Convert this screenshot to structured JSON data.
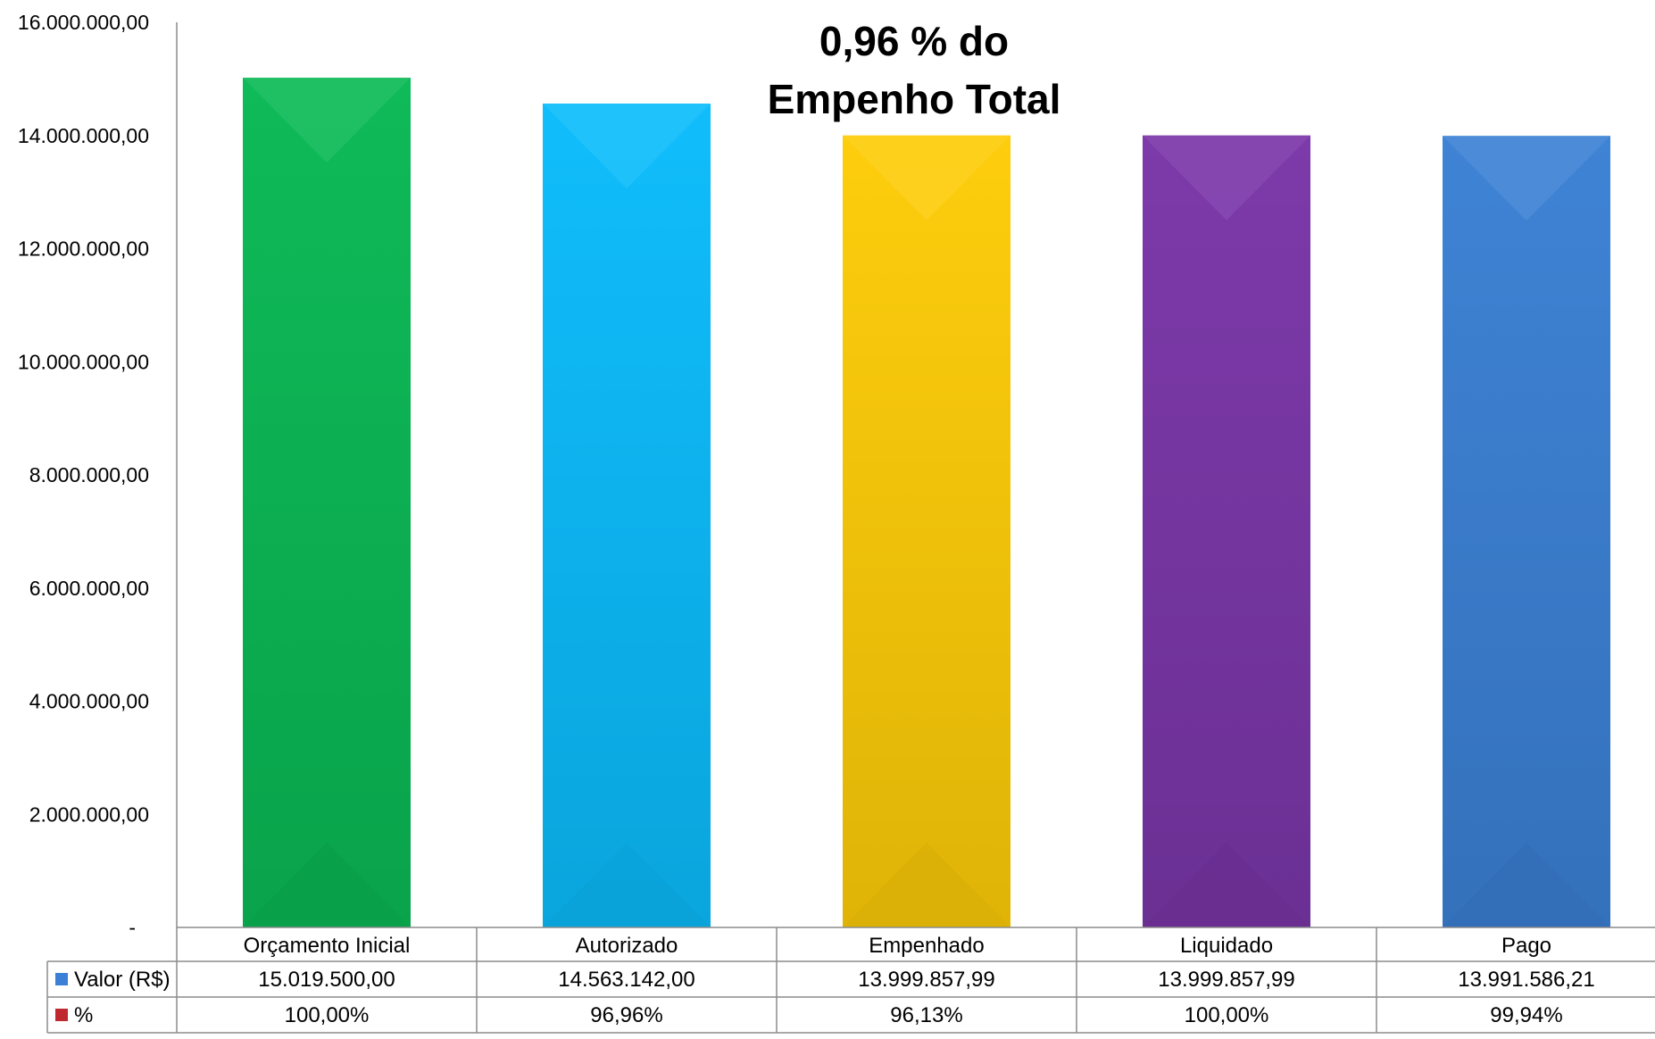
{
  "chart_data": {
    "type": "bar",
    "title_lines": [
      "0,96 % do",
      "Empenho Total"
    ],
    "categories": [
      "Orçamento Inicial",
      "Autorizado",
      "Empenhado",
      "Liquidado",
      "Pago"
    ],
    "values": [
      15019500.0,
      14563142.0,
      13999857.99,
      13999857.99,
      13991586.21
    ],
    "bar_colors": [
      "#0ab955",
      "#0bbcfb",
      "#fdcc08",
      "#7a36a8",
      "#3b80d4"
    ],
    "ylim": [
      0,
      16000000
    ],
    "yticks": [
      {
        "value": 0,
        "label": "-"
      },
      {
        "value": 2000000,
        "label": "2.000.000,00"
      },
      {
        "value": 4000000,
        "label": "4.000.000,00"
      },
      {
        "value": 6000000,
        "label": "6.000.000,00"
      },
      {
        "value": 8000000,
        "label": "8.000.000,00"
      },
      {
        "value": 10000000,
        "label": "10.000.000,00"
      },
      {
        "value": 12000000,
        "label": "12.000.000,00"
      },
      {
        "value": 14000000,
        "label": "14.000.000,00"
      },
      {
        "value": 16000000,
        "label": "16.000.000,00"
      }
    ],
    "grid": false,
    "data_table": {
      "rows": [
        {
          "label": "Valor (R$)",
          "legend_color": "#3b7fd6",
          "cells": [
            "15.019.500,00",
            "14.563.142,00",
            "13.999.857,99",
            "13.999.857,99",
            "13.991.586,21"
          ]
        },
        {
          "label": "%",
          "legend_color": "#c0282f",
          "cells": [
            "100,00%",
            "96,96%",
            "96,13%",
            "100,00%",
            "99,94%"
          ]
        }
      ]
    }
  }
}
